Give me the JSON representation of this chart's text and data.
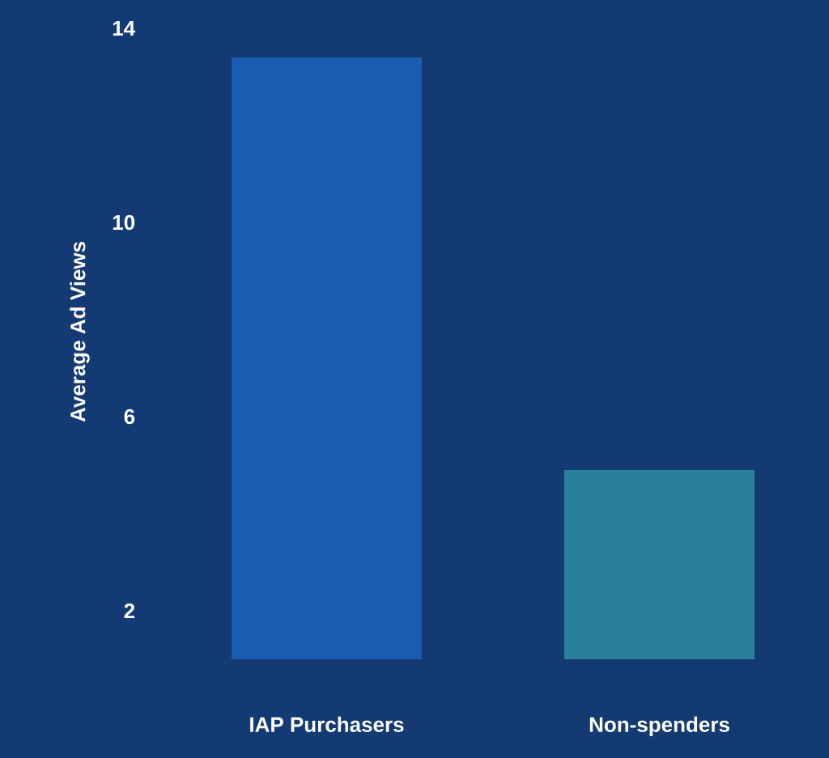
{
  "chart_data": {
    "type": "bar",
    "ylabel": "Average Ad Views",
    "categories": [
      "IAP Purchasers",
      "Non-spenders"
    ],
    "values": [
      13.4,
      4.9
    ],
    "colors": [
      "#1a5cb0",
      "#2a7f9a"
    ],
    "ylim": [
      1,
      14.5
    ],
    "yticks": [
      2,
      6,
      10,
      14
    ]
  }
}
